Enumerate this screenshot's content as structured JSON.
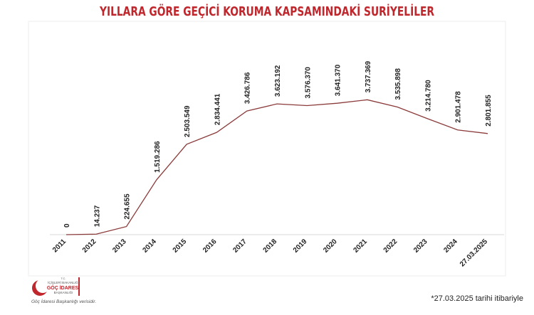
{
  "chart_data": {
    "type": "line",
    "title": "YILLARA GÖRE GEÇİCİ KORUMA KAPSAMINDAKİ SURİYELİLER",
    "categories": [
      "2011",
      "2012",
      "2013",
      "2014",
      "2015",
      "2016",
      "2017",
      "2018",
      "2019",
      "2020",
      "2021",
      "2022",
      "2023",
      "2024",
      "27.03.2025"
    ],
    "series": [
      {
        "color": "#8b3a3a",
        "values": [
          0,
          14237,
          224655,
          1519286,
          2503549,
          2834441,
          3426786,
          3623192,
          3576370,
          3641370,
          3737369,
          3535898,
          3214780,
          2901478,
          2801855
        ],
        "value_labels": [
          "0",
          "14.237",
          "224.655",
          "1.519.286",
          "2.503.549",
          "2.834.441",
          "3.426.786",
          "3.623.192",
          "3.576.370",
          "3.641.370",
          "3.737.369",
          "3.535.898",
          "3.214.780",
          "2.901.478",
          "2.801.855"
        ]
      }
    ],
    "ylim": [
      0,
      4000000
    ]
  },
  "logo": {
    "line1": "T.C.",
    "line2": "İÇİŞLERİ BAKANLIĞI",
    "line3": "GÖÇ İDARESİ",
    "line4": "BAŞKANLIĞI"
  },
  "source": "Göç İdaresi Başkanlığı verisidir.",
  "note": "*27.03.2025 tarihi itibariyle"
}
